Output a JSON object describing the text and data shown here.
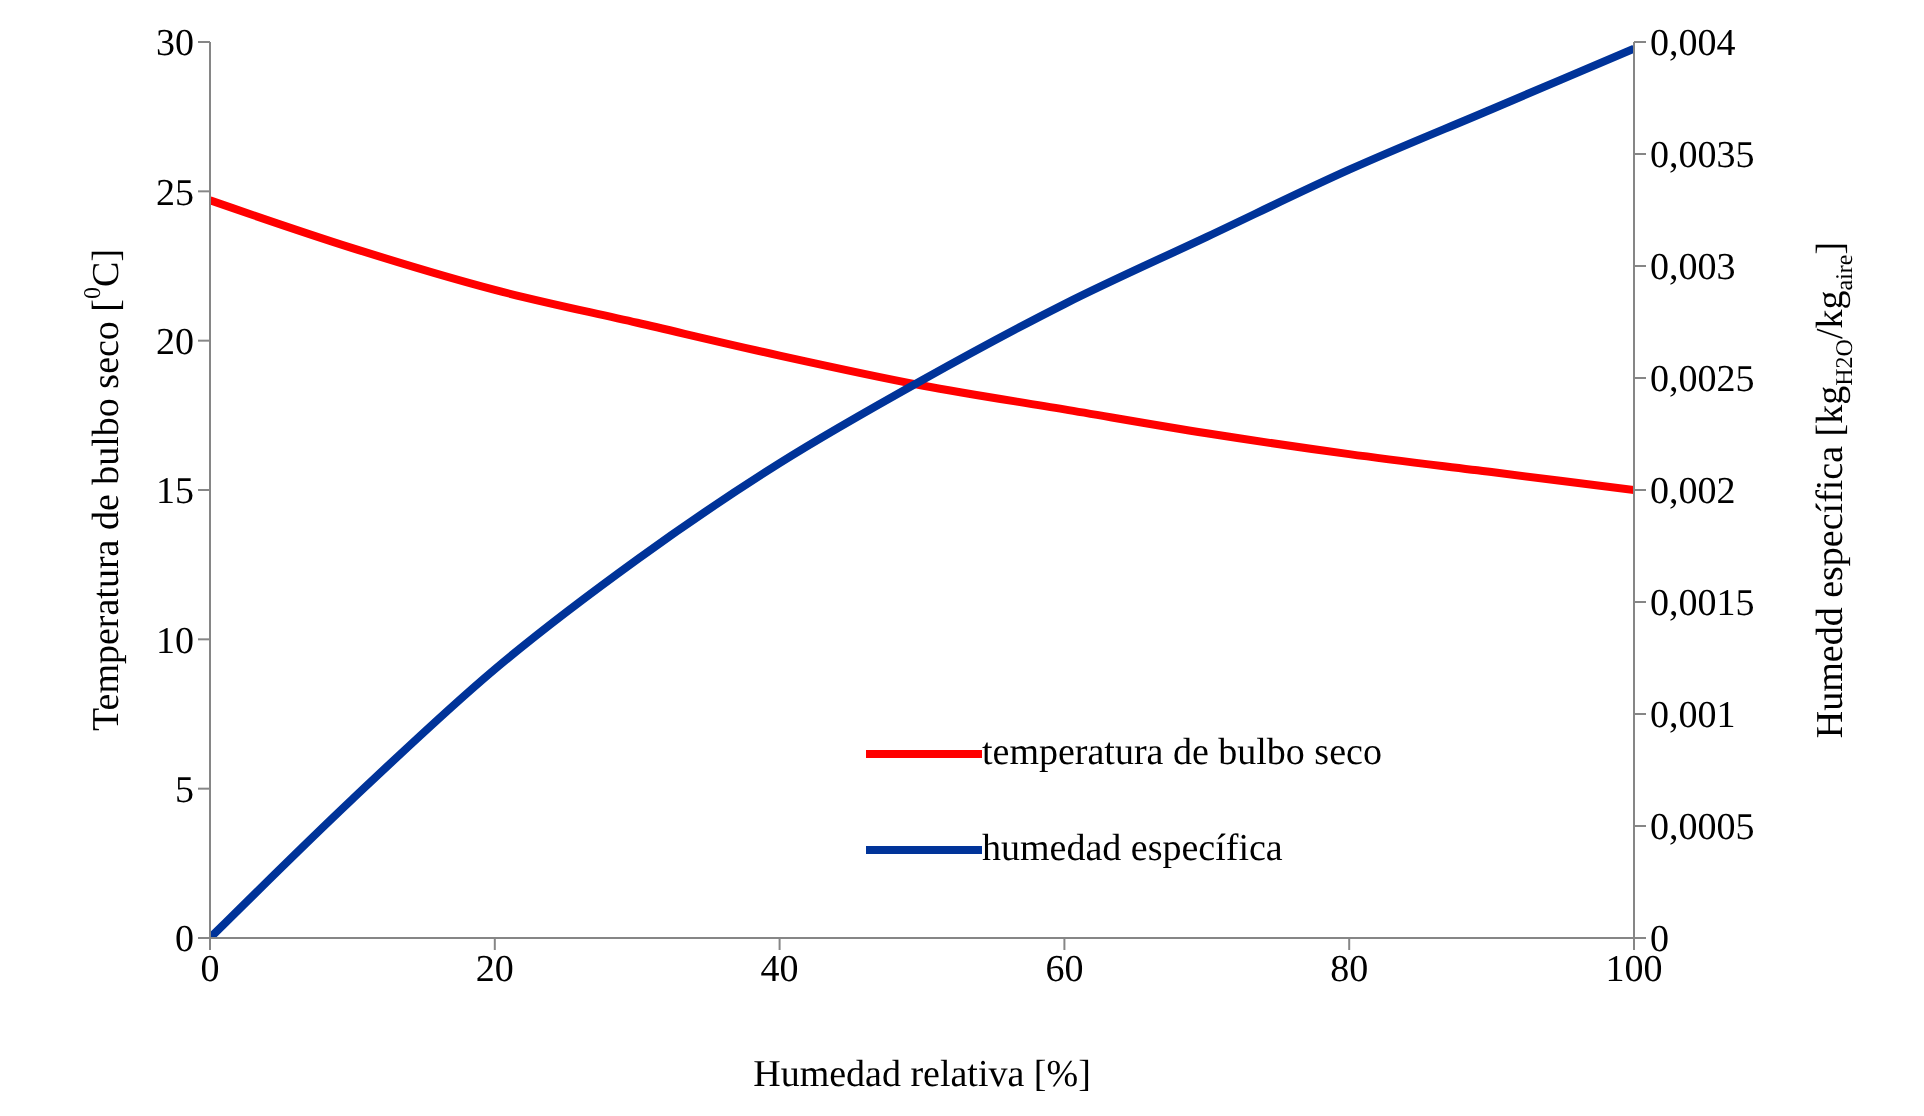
{
  "chart_data": {
    "type": "line",
    "xlabel": "Humedad relativa [%]",
    "ylabel": "Temperatura de bulbo seco [$^{0}$C]",
    "y2label": "Humedd específica [kg$_{H2O}$/kg$_{aire}$]",
    "x": [
      0,
      10,
      20,
      30,
      40,
      50,
      60,
      70,
      80,
      90,
      100
    ],
    "series": [
      {
        "name": "temperatura de bulbo seco",
        "color": "#ff0000",
        "values": [
          24.7,
          23.1,
          21.7,
          20.6,
          19.5,
          18.5,
          17.7,
          16.9,
          16.2,
          15.6,
          15.0
        ]
      },
      {
        "name": "humedad específica",
        "color": "#003399",
        "axis": "y2",
        "values": [
          0,
          0.00062,
          0.0012,
          0.00169,
          0.00212,
          0.00249,
          0.00283,
          0.00313,
          0.00343,
          0.0037,
          0.00397
        ]
      }
    ],
    "xlim": [
      0,
      100
    ],
    "xticks": [
      0,
      20,
      40,
      60,
      80,
      100
    ],
    "ylim": [
      0,
      30
    ],
    "yticks": [
      0,
      5,
      10,
      15,
      20,
      25,
      30
    ],
    "y2lim": [
      0,
      0.004
    ],
    "y2ticks": [
      0,
      {
        "value": 0.0005,
        "label": "0,0005"
      },
      {
        "value": 0.001,
        "label": "0,001"
      },
      {
        "value": 0.0015,
        "label": "0,0015"
      },
      {
        "value": 0.002,
        "label": "0,002"
      },
      {
        "value": 0.0025,
        "label": "0,0025"
      },
      {
        "value": 0.003,
        "label": "0,003"
      },
      {
        "value": 0.0035,
        "label": "0,0035"
      },
      {
        "value": 0.004,
        "label": "0,004"
      }
    ],
    "grid": false,
    "legend": "bottom right",
    "marker": "none",
    "line_style": "solid"
  }
}
